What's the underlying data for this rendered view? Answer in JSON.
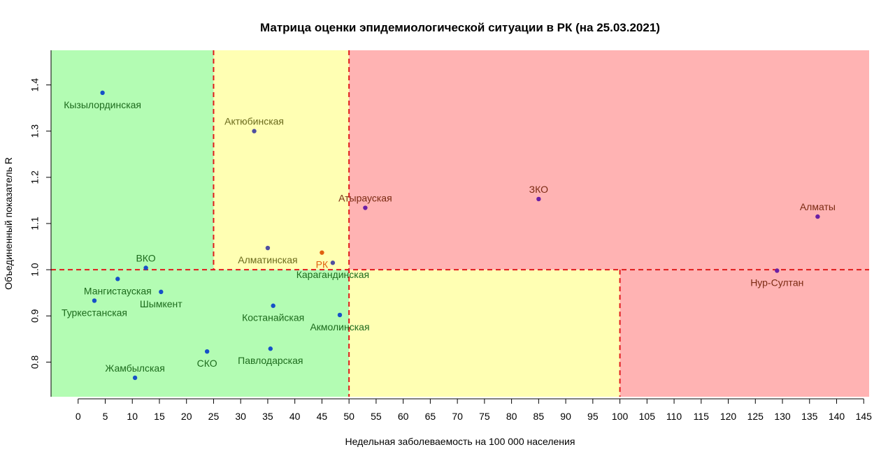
{
  "chart_data": {
    "type": "scatter",
    "title": "Матрица оценки эпидемиологической ситуации в РК (на 25.03.2021)",
    "xlabel": "Недельная заболеваемость на 100 000 населения",
    "ylabel": "Объединенный показатель R",
    "xlim": [
      -5,
      146
    ],
    "ylim": [
      0.725,
      1.475
    ],
    "x_ticks": [
      0,
      5,
      10,
      15,
      20,
      25,
      30,
      35,
      40,
      45,
      50,
      55,
      60,
      65,
      70,
      75,
      80,
      85,
      90,
      95,
      100,
      105,
      110,
      115,
      120,
      125,
      130,
      135,
      140,
      145
    ],
    "y_ticks": [
      0.8,
      0.9,
      1.0,
      1.1,
      1.2,
      1.3,
      1.4
    ],
    "y_tick_labels": [
      "0.8",
      "0.9",
      "1.0",
      "1.1",
      "1.2",
      "1.3",
      "1.4"
    ],
    "grid": false,
    "zones": [
      {
        "name": "green",
        "color": "#b3fcb3",
        "x": [
          -5,
          25
        ],
        "y": [
          1.0,
          1.475
        ]
      },
      {
        "name": "yellow",
        "color": "#ffffb3",
        "x": [
          25,
          50
        ],
        "y": [
          1.0,
          1.475
        ]
      },
      {
        "name": "red",
        "color": "#ffb3b3",
        "x": [
          50,
          146
        ],
        "y": [
          1.0,
          1.475
        ]
      },
      {
        "name": "green",
        "color": "#b3fcb3",
        "x": [
          -5,
          50
        ],
        "y": [
          0.725,
          1.0
        ]
      },
      {
        "name": "yellow",
        "color": "#ffffb3",
        "x": [
          50,
          100
        ],
        "y": [
          0.725,
          1.0
        ]
      },
      {
        "name": "red",
        "color": "#ffb3b3",
        "x": [
          100,
          146
        ],
        "y": [
          0.725,
          1.0
        ]
      }
    ],
    "thresholds": [
      {
        "axis": "x",
        "value": 25,
        "y_range": [
          1.0,
          1.475
        ]
      },
      {
        "axis": "x",
        "value": 50,
        "y_range": [
          0.725,
          1.475
        ]
      },
      {
        "axis": "x",
        "value": 100,
        "y_range": [
          0.725,
          1.0
        ]
      },
      {
        "axis": "y",
        "value": 1.0,
        "x_range": [
          -5,
          146
        ]
      }
    ],
    "threshold_color": "#e01b1b",
    "points": [
      {
        "label": "Кызылординская",
        "x": 4.5,
        "y": 1.383,
        "color": "#1550c8",
        "label_color": "#1d6b1d",
        "label_pos": "below"
      },
      {
        "label": "Актюбинская",
        "x": 32.5,
        "y": 1.3,
        "color": "#4f4fa0",
        "label_color": "#6b6b1d",
        "label_pos": "above"
      },
      {
        "label": "Атырауская",
        "x": 53.0,
        "y": 1.134,
        "color": "#6a1fa5",
        "label_color": "#7a2a12",
        "label_pos": "above"
      },
      {
        "label": "ЗКО",
        "x": 85.0,
        "y": 1.153,
        "color": "#6a1fa5",
        "label_color": "#7a2a12",
        "label_pos": "above"
      },
      {
        "label": "Алматы",
        "x": 136.5,
        "y": 1.115,
        "color": "#6a1fa5",
        "label_color": "#7a2a12",
        "label_pos": "above"
      },
      {
        "label": "Алматинская",
        "x": 35.0,
        "y": 1.047,
        "color": "#4f4fa0",
        "label_color": "#6b6b1d",
        "label_pos": "below"
      },
      {
        "label": "РК",
        "x": 45.0,
        "y": 1.037,
        "color": "#e06010",
        "label_color": "#e06010",
        "label_pos": "below"
      },
      {
        "label": "Карагандинская",
        "x": 47.0,
        "y": 1.015,
        "color": "#4f4fa0",
        "label_color": "#1d6b1d",
        "label_pos": "below"
      },
      {
        "label": "ВКО",
        "x": 12.5,
        "y": 1.004,
        "color": "#1550c8",
        "label_color": "#1d6b1d",
        "label_pos": "above"
      },
      {
        "label": "Нур-Султан",
        "x": 129.0,
        "y": 0.998,
        "color": "#6a1fa5",
        "label_color": "#7a2a12",
        "label_pos": "below"
      },
      {
        "label": "Мангистауская",
        "x": 7.3,
        "y": 0.98,
        "color": "#1550c8",
        "label_color": "#1d6b1d",
        "label_pos": "below"
      },
      {
        "label": "Шымкент",
        "x": 15.3,
        "y": 0.952,
        "color": "#1550c8",
        "label_color": "#1d6b1d",
        "label_pos": "below"
      },
      {
        "label": "Туркестанская",
        "x": 3.0,
        "y": 0.933,
        "color": "#1550c8",
        "label_color": "#1d6b1d",
        "label_pos": "below"
      },
      {
        "label": "Костанайская",
        "x": 36.0,
        "y": 0.922,
        "color": "#1550c8",
        "label_color": "#1d6b1d",
        "label_pos": "below"
      },
      {
        "label": "Акмолинская",
        "x": 48.3,
        "y": 0.902,
        "color": "#1550c8",
        "label_color": "#1d6b1d",
        "label_pos": "below"
      },
      {
        "label": "Павлодарская",
        "x": 35.5,
        "y": 0.829,
        "color": "#1550c8",
        "label_color": "#1d6b1d",
        "label_pos": "below"
      },
      {
        "label": "СКО",
        "x": 23.8,
        "y": 0.823,
        "color": "#1550c8",
        "label_color": "#1d6b1d",
        "label_pos": "below"
      },
      {
        "label": "Жамбылская",
        "x": 10.5,
        "y": 0.766,
        "color": "#1550c8",
        "label_color": "#1d6b1d",
        "label_pos": "above"
      }
    ]
  }
}
